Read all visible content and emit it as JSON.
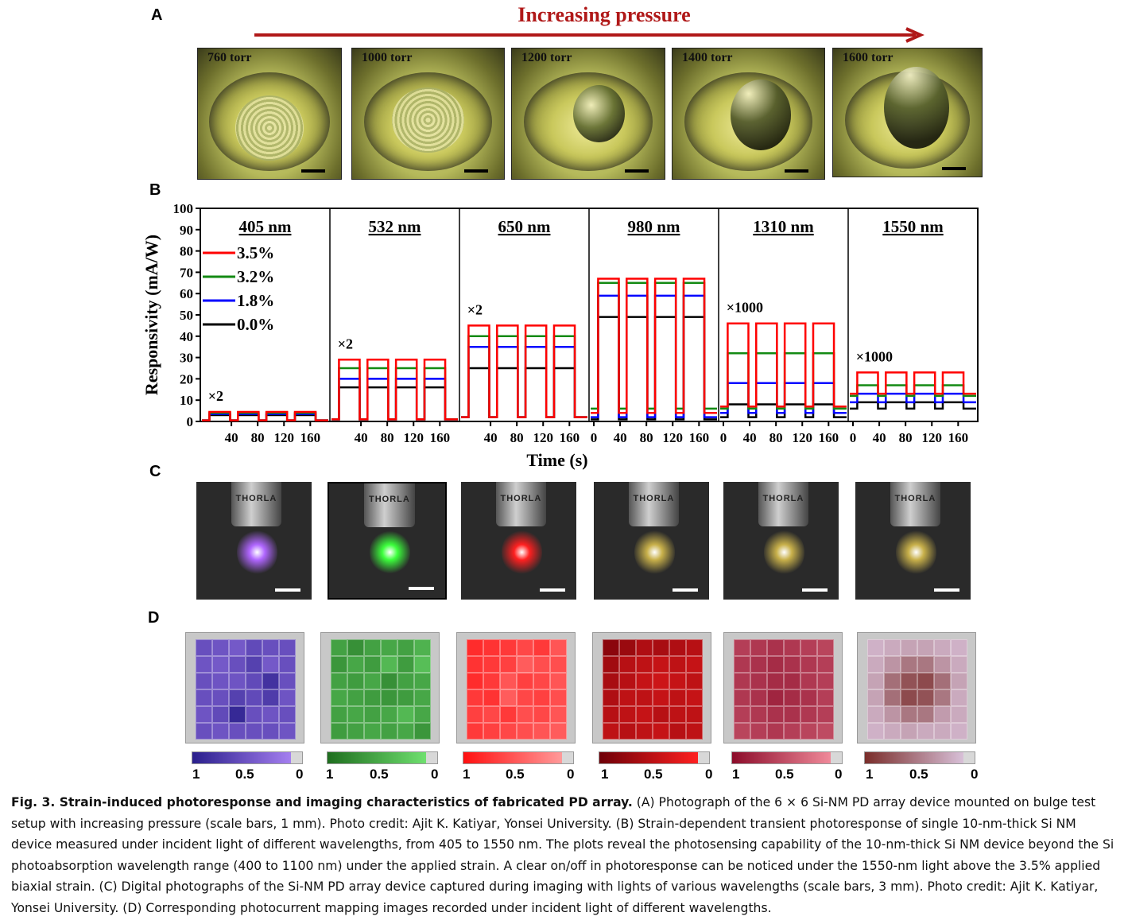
{
  "panels": {
    "A": "A",
    "B": "B",
    "C": "C",
    "D": "D"
  },
  "panel_a": {
    "title": "Increasing pressure",
    "pressures": [
      "760 torr",
      "1000 torr",
      "1200 torr",
      "1400 torr",
      "1600 torr"
    ]
  },
  "chart_data": {
    "type": "line",
    "ylabel": "Responsivity (mA/W)",
    "xlabel": "Time (s)",
    "ylim": [
      0,
      100
    ],
    "yticks": [
      0,
      10,
      20,
      30,
      40,
      50,
      60,
      70,
      80,
      90,
      100
    ],
    "xticks": [
      [
        "40",
        "80",
        "120",
        "160"
      ],
      [
        "40",
        "80",
        "120",
        "160"
      ],
      [
        "40",
        "80",
        "120",
        "160"
      ],
      [
        "0",
        "40",
        "80",
        "120",
        "160"
      ],
      [
        "0",
        "40",
        "80",
        "120",
        "160"
      ],
      [
        "0",
        "40",
        "80",
        "120",
        "160"
      ]
    ],
    "legend": [
      {
        "label": "3.5%",
        "color": "#ff0000"
      },
      {
        "label": "3.2%",
        "color": "#138a13"
      },
      {
        "label": "1.8%",
        "color": "#0000ff"
      },
      {
        "label": "0.0%",
        "color": "#000000"
      }
    ],
    "subpanels": [
      {
        "wavelength": "405 nm",
        "multiplier": "×2",
        "on_values": {
          "3.5%": 4.5,
          "3.2%": 4.0,
          "1.8%": 3.5,
          "0.0%": 3.0
        },
        "off_values": {
          "3.5%": 0.5,
          "3.2%": 0.5,
          "1.8%": 0.5,
          "0.0%": 0.5
        }
      },
      {
        "wavelength": "532 nm",
        "multiplier": "×2",
        "on_values": {
          "3.5%": 29,
          "3.2%": 25,
          "1.8%": 20,
          "0.0%": 16
        },
        "off_values": {
          "3.5%": 1,
          "3.2%": 1,
          "1.8%": 1,
          "0.0%": 1
        }
      },
      {
        "wavelength": "650 nm",
        "multiplier": "×2",
        "on_values": {
          "3.5%": 45,
          "3.2%": 40,
          "1.8%": 35,
          "0.0%": 25
        },
        "off_values": {
          "3.5%": 2,
          "3.2%": 2,
          "1.8%": 2,
          "0.0%": 2
        }
      },
      {
        "wavelength": "980 nm",
        "multiplier": "",
        "on_values": {
          "3.5%": 67,
          "3.2%": 65,
          "1.8%": 59,
          "0.0%": 49
        },
        "off_values": {
          "3.5%": 4,
          "3.2%": 6,
          "1.8%": 2,
          "0.0%": 1
        }
      },
      {
        "wavelength": "1310 nm",
        "multiplier": "×1000",
        "on_values": {
          "3.5%": 46,
          "3.2%": 32,
          "1.8%": 18,
          "0.0%": 8
        },
        "off_values": {
          "3.5%": 7,
          "3.2%": 6,
          "1.8%": 4,
          "0.0%": 2
        }
      },
      {
        "wavelength": "1550 nm",
        "multiplier": "×1000",
        "on_values": {
          "3.5%": 23,
          "3.2%": 17,
          "1.8%": 13,
          "0.0%": 9
        },
        "off_values": {
          "3.5%": 13,
          "3.2%": 12,
          "1.8%": 9,
          "0.0%": 6
        }
      }
    ]
  },
  "panel_c": {
    "lens_text": "THORLA",
    "glows": [
      "#b066ff",
      "#3cff3c",
      "#ff2020",
      "#c8b04a",
      "#c8b04a",
      "#c8b04a"
    ]
  },
  "panel_d": {
    "maps": [
      {
        "color_dark": "#2a1f8c",
        "color_light": "#a57ff0"
      },
      {
        "color_dark": "#1f6e1f",
        "color_light": "#6fe06f"
      },
      {
        "color_dark": "#ff1010",
        "color_light": "#ff9a9a"
      },
      {
        "color_dark": "#6e0008",
        "color_light": "#ff2020"
      },
      {
        "color_dark": "#8c0c2a",
        "color_light": "#f08a9a"
      },
      {
        "color_dark": "#7a2d2a",
        "color_light": "#d8c0d8"
      }
    ],
    "colorbar_labels": [
      "1",
      "0.5",
      "0"
    ]
  },
  "caption": {
    "title": "Fig. 3. Strain-induced photoresponse and imaging characteristics of fabricated PD array.",
    "text_a": " (A) Photograph of the 6 × 6 Si-NM PD array device mounted on bulge test setup with increasing pressure (scale bars, 1 mm). Photo credit: Ajit K. Katiyar, Yonsei University. (B) Strain-dependent transient photoresponse of single 10-nm-thick Si NM device measured under incident light of different wavelengths, from 405 to 1550 nm. The plots reveal the photosensing capability of the 10-nm-thick Si NM device beyond the Si photoabsorption wavelength range (400 to 1100 nm) under the applied strain. A clear on/off in photoresponse can be noticed under the 1550-nm light above the 3.5% applied biaxial strain. (C) Digital photographs of the Si-NM PD array device captured during imaging with lights of various wavelengths (scale bars, 3 mm). Photo credit: Ajit K. Katiyar, Yonsei University. (D) Corresponding photocurrent mapping images recorded under incident light of different wavelengths."
  }
}
